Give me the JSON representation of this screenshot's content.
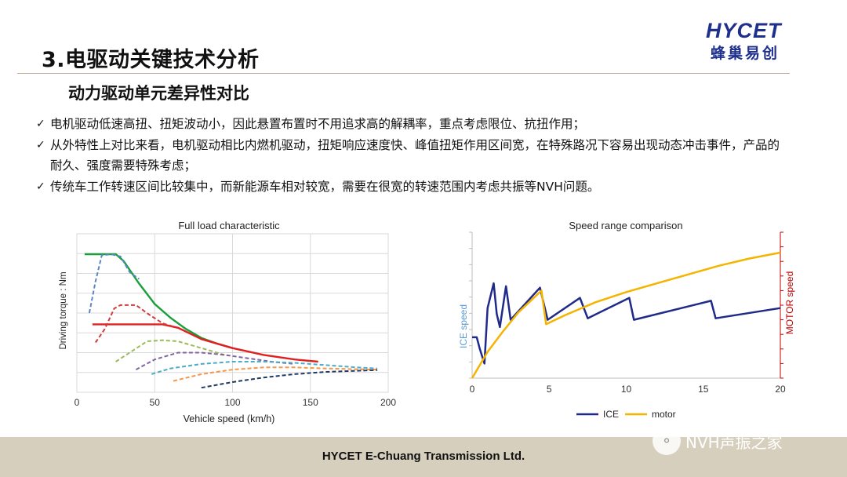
{
  "slide": {
    "title": "3.电驱动关键技术分析",
    "subtitle": "动力驱动单元差异性对比"
  },
  "logo": {
    "brand": "HYCET",
    "chinese": "蜂巢易创"
  },
  "bullets": [
    {
      "mark": "✓",
      "text": "电机驱动低速高扭、扭矩波动小，因此悬置布置时不用追求高的解耦率，重点考虑限位、抗扭作用；"
    },
    {
      "mark": "✓",
      "text": "从外特性上对比来看，电机驱动相比内燃机驱动，扭矩响应速度快、峰值扭矩作用区间宽，在特殊路况下容易出现动态冲击事件，产品的耐久、强度需要特殊考虑；"
    },
    {
      "mark": "✓",
      "text": "传统车工作转速区间比较集中，而新能源车相对较宽，需要在很宽的转速范围内考虑共振等NVH问题。"
    }
  ],
  "footer": {
    "company": "HYCET E-Chuang Transmission Ltd."
  },
  "watermark": {
    "text": "NVH声振之家"
  },
  "chart_data": [
    {
      "type": "line",
      "title": "Full load characteristic",
      "xlabel": "Vehicle speed (km/h)",
      "ylabel": "Driving torque : Nm",
      "xlim": [
        0,
        200
      ],
      "x_ticks": [
        0,
        50,
        100,
        150,
        200
      ],
      "y_ticks_shown": false,
      "grid": true,
      "y_scale": [
        0,
        6
      ],
      "series": [
        {
          "color": "#1a9f3b",
          "dash": false,
          "points": [
            [
              5,
              5.1
            ],
            [
              25,
              5.1
            ],
            [
              30,
              4.8
            ],
            [
              40,
              3.8
            ],
            [
              50,
              2.9
            ],
            [
              60,
              2.3
            ],
            [
              70,
              1.8
            ],
            [
              80,
              1.4
            ],
            [
              90,
              1.15
            ],
            [
              100,
              0.95
            ]
          ]
        },
        {
          "color": "#e02020",
          "dash": false,
          "points": [
            [
              10,
              2.0
            ],
            [
              55,
              2.0
            ],
            [
              65,
              1.85
            ],
            [
              80,
              1.35
            ],
            [
              100,
              0.95
            ],
            [
              120,
              0.65
            ],
            [
              140,
              0.45
            ],
            [
              155,
              0.35
            ]
          ]
        },
        {
          "color": "#5a87c4",
          "dash": true,
          "points": [
            [
              8,
              2.5
            ],
            [
              12,
              3.9
            ],
            [
              16,
              5.05
            ],
            [
              22,
              5.1
            ],
            [
              28,
              5.0
            ],
            [
              34,
              4.3
            ],
            [
              40,
              4.0
            ]
          ]
        },
        {
          "color": "#d03b3b",
          "dash": true,
          "points": [
            [
              12,
              1.2
            ],
            [
              18,
              1.8
            ],
            [
              24,
              2.7
            ],
            [
              28,
              2.85
            ],
            [
              38,
              2.85
            ],
            [
              46,
              2.45
            ],
            [
              55,
              2.05
            ],
            [
              62,
              1.9
            ]
          ]
        },
        {
          "color": "#9bbb59",
          "dash": true,
          "points": [
            [
              25,
              0.35
            ],
            [
              35,
              0.8
            ],
            [
              45,
              1.25
            ],
            [
              55,
              1.3
            ],
            [
              65,
              1.25
            ],
            [
              75,
              1.05
            ],
            [
              85,
              0.85
            ],
            [
              95,
              0.65
            ]
          ]
        },
        {
          "color": "#8064a2",
          "dash": true,
          "points": [
            [
              38,
              0.0
            ],
            [
              50,
              0.45
            ],
            [
              65,
              0.75
            ],
            [
              80,
              0.75
            ],
            [
              95,
              0.65
            ],
            [
              110,
              0.5
            ],
            [
              125,
              0.35
            ],
            [
              140,
              0.25
            ]
          ]
        },
        {
          "color": "#4bacc6",
          "dash": true,
          "points": [
            [
              48,
              -0.2
            ],
            [
              60,
              0.05
            ],
            [
              80,
              0.25
            ],
            [
              100,
              0.35
            ],
            [
              120,
              0.35
            ],
            [
              140,
              0.3
            ],
            [
              160,
              0.2
            ],
            [
              180,
              0.1
            ],
            [
              193,
              0.05
            ]
          ]
        },
        {
          "color": "#f79646",
          "dash": true,
          "points": [
            [
              62,
              -0.5
            ],
            [
              80,
              -0.2
            ],
            [
              100,
              0.0
            ],
            [
              120,
              0.1
            ],
            [
              140,
              0.1
            ],
            [
              160,
              0.05
            ],
            [
              180,
              0.02
            ],
            [
              193,
              0.0
            ]
          ]
        },
        {
          "color": "#1f3864",
          "dash": true,
          "points": [
            [
              80,
              -0.8
            ],
            [
              100,
              -0.55
            ],
            [
              120,
              -0.35
            ],
            [
              140,
              -0.2
            ],
            [
              160,
              -0.1
            ],
            [
              180,
              -0.05
            ],
            [
              193,
              -0.02
            ]
          ]
        }
      ]
    },
    {
      "type": "line",
      "title": "Speed range comparison",
      "ylabel_left": "ICE speed",
      "ylabel_right": "MOTOR speed",
      "xlim": [
        0,
        20
      ],
      "x_ticks": [
        0,
        5,
        10,
        15,
        20
      ],
      "y_ticks_shown": false,
      "grid": false,
      "legend": "bottom",
      "legend_entries": [
        "ICE",
        "motor"
      ],
      "series": [
        {
          "name": "ICE",
          "color": "#1f2a8a",
          "points": [
            [
              0,
              0.72
            ],
            [
              0.3,
              0.72
            ],
            [
              0.5,
              0.8
            ],
            [
              0.8,
              0.9
            ],
            [
              1.0,
              0.52
            ],
            [
              1.4,
              0.35
            ],
            [
              1.6,
              0.56
            ],
            [
              1.8,
              0.65
            ],
            [
              2.2,
              0.37
            ],
            [
              2.5,
              0.6
            ],
            [
              4.4,
              0.38
            ],
            [
              4.9,
              0.6
            ],
            [
              7.0,
              0.45
            ],
            [
              7.5,
              0.59
            ],
            [
              10.2,
              0.45
            ],
            [
              10.5,
              0.6
            ],
            [
              15.5,
              0.47
            ],
            [
              15.8,
              0.59
            ],
            [
              20,
              0.52
            ]
          ]
        },
        {
          "name": "motor",
          "color": "#f5b400",
          "points": [
            [
              0,
              1.0
            ],
            [
              1,
              0.82
            ],
            [
              2,
              0.68
            ],
            [
              3,
              0.55
            ],
            [
              4,
              0.45
            ],
            [
              4.5,
              0.4
            ],
            [
              4.8,
              0.63
            ],
            [
              6,
              0.57
            ],
            [
              8,
              0.48
            ],
            [
              10,
              0.41
            ],
            [
              12,
              0.35
            ],
            [
              14,
              0.29
            ],
            [
              16,
              0.23
            ],
            [
              18,
              0.18
            ],
            [
              20,
              0.14
            ]
          ]
        }
      ]
    }
  ]
}
